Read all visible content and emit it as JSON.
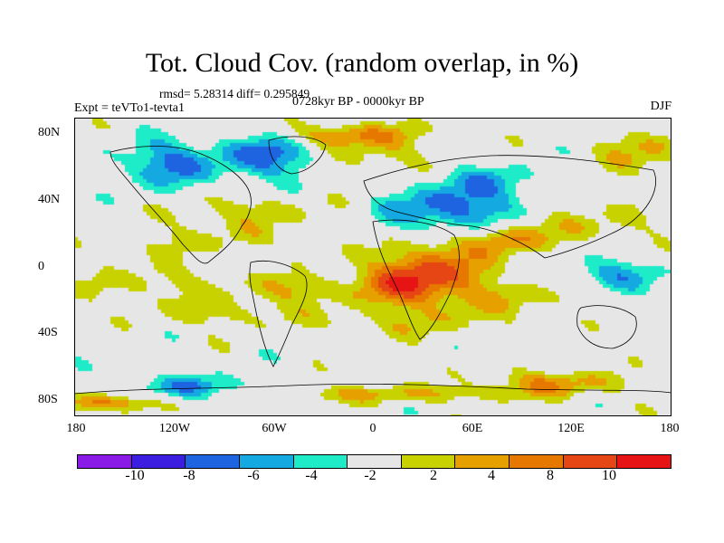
{
  "title": "Tot. Cloud Cov. (random overlap, in %)",
  "stats": "rmsd= 5.28314 diff= 0.295849",
  "experiment": "Expt = teVTo1-tevta1",
  "period": "0728kyr BP - 0000kyr BP",
  "season": "DJF",
  "map": {
    "lon_range": [
      -180,
      180
    ],
    "lat_range": [
      -90,
      90
    ],
    "x_ticks": [
      "180",
      "120W",
      "60W",
      "0",
      "60E",
      "120E",
      "180"
    ],
    "y_ticks": [
      "80N",
      "40N",
      "0",
      "40S",
      "80S"
    ],
    "field": "cloud cover anomaly (%)"
  },
  "colorbar": {
    "colors": [
      "#8a1ae6",
      "#3c1ee1",
      "#1e64e1",
      "#14aae1",
      "#1eebc8",
      "#e6e6e6",
      "#c8d200",
      "#e6a000",
      "#e67800",
      "#e64614",
      "#e61414"
    ],
    "labels": [
      "-10",
      "-8",
      "-6",
      "-4",
      "-2",
      "2",
      "4",
      "8",
      "10"
    ]
  }
}
